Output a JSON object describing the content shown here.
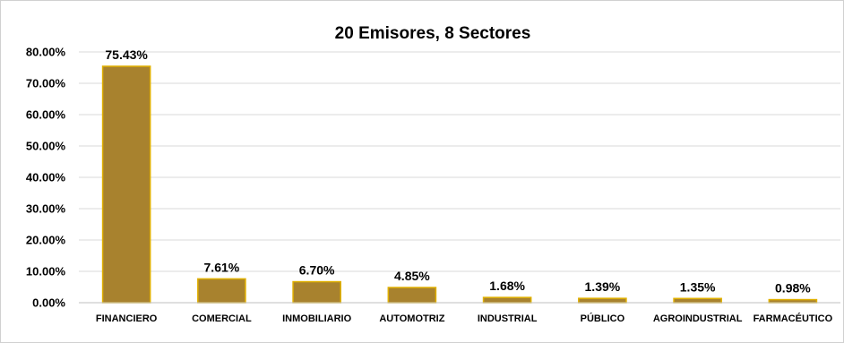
{
  "chart_data": {
    "type": "bar",
    "title": "20 Emisores, 8 Sectores",
    "xlabel": "",
    "ylabel": "",
    "categories": [
      "FINANCIERO",
      "COMERCIAL",
      "INMOBILIARIO",
      "AUTOMOTRIZ",
      "INDUSTRIAL",
      "PÚBLICO",
      "AGROINDUSTRIAL",
      "FARMACÉUTICO"
    ],
    "values": [
      75.43,
      7.61,
      6.7,
      4.85,
      1.68,
      1.39,
      1.35,
      0.98
    ],
    "data_labels": [
      "75.43%",
      "7.61%",
      "6.70%",
      "4.85%",
      "1.68%",
      "1.39%",
      "1.35%",
      "0.98%"
    ],
    "ylim": [
      0,
      80
    ],
    "y_ticks": [
      0,
      10,
      20,
      30,
      40,
      50,
      60,
      70,
      80
    ],
    "y_tick_labels": [
      "0.00%",
      "10.00%",
      "20.00%",
      "30.00%",
      "40.00%",
      "50.00%",
      "60.00%",
      "70.00%",
      "80.00%"
    ],
    "grid": true,
    "legend": "none",
    "bar_color": "#a8822e",
    "bar_edge_color": "#e0b000"
  }
}
